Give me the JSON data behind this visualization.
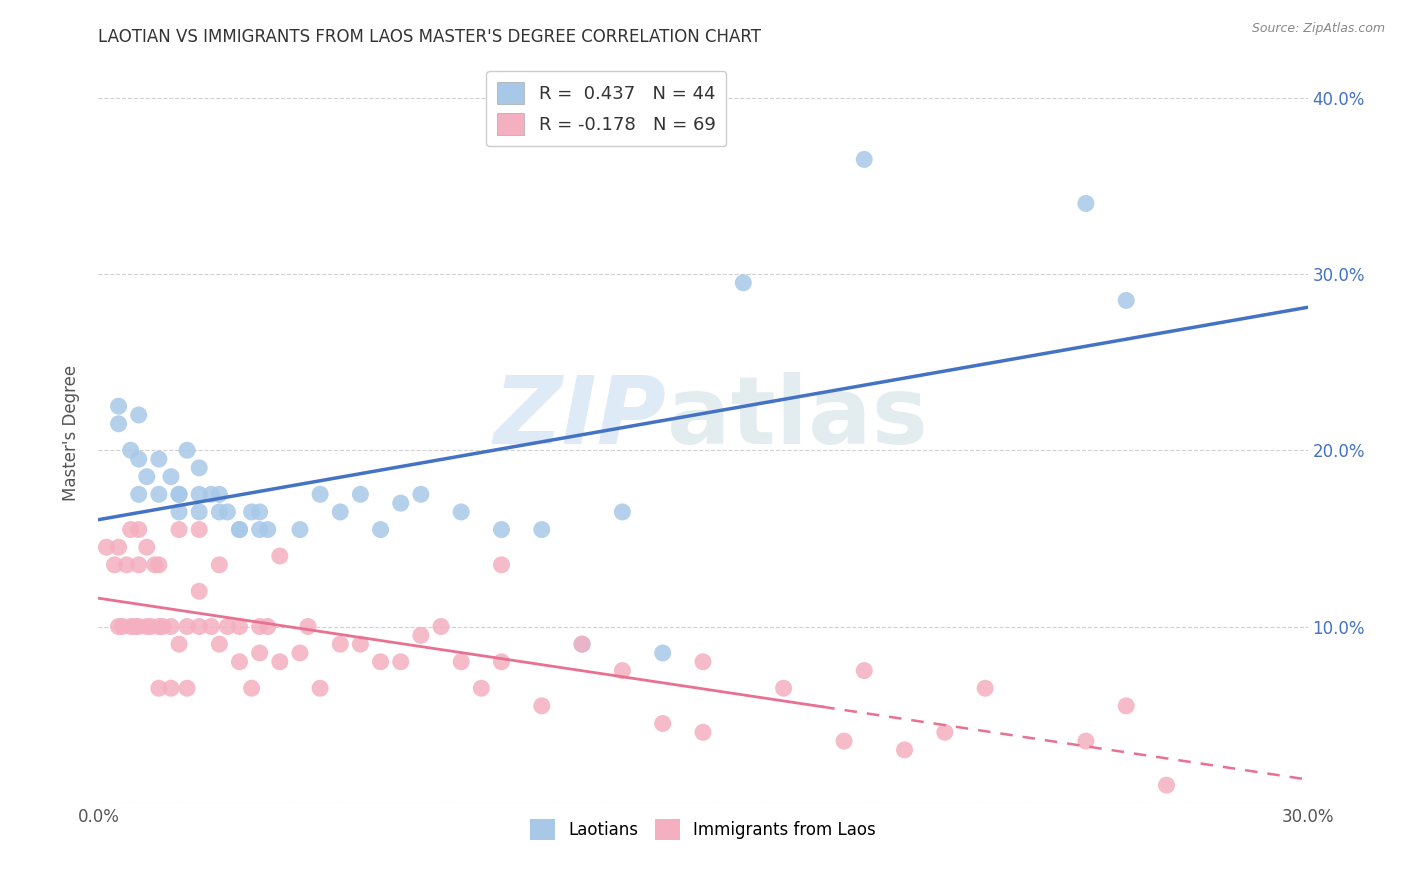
{
  "title": "LAOTIAN VS IMMIGRANTS FROM LAOS MASTER'S DEGREE CORRELATION CHART",
  "source": "Source: ZipAtlas.com",
  "ylabel": "Master's Degree",
  "xlim": [
    0.0,
    0.3
  ],
  "ylim": [
    0.0,
    0.42
  ],
  "x_ticks": [
    0.0,
    0.05,
    0.1,
    0.15,
    0.2,
    0.25,
    0.3
  ],
  "x_tick_labels": [
    "0.0%",
    "",
    "",
    "",
    "",
    "",
    "30.0%"
  ],
  "y_ticks_left": [
    0.0,
    0.1,
    0.2,
    0.3,
    0.4
  ],
  "y_tick_labels_left": [
    "",
    "",
    "",
    "",
    ""
  ],
  "y_ticks_right": [
    0.0,
    0.1,
    0.2,
    0.3,
    0.4
  ],
  "y_tick_labels_right": [
    "",
    "10.0%",
    "20.0%",
    "30.0%",
    "40.0%"
  ],
  "blue_color": "#a8c8e8",
  "pink_color": "#f4afc0",
  "blue_line_color": "#4472c4",
  "pink_line_color": "#e87090",
  "legend_blue_label": "R =  0.437   N = 44",
  "legend_pink_label": "R = -0.178   N = 69",
  "right_axis_color": "#4472c4",
  "blue_scatter_x": [
    0.005,
    0.008,
    0.01,
    0.01,
    0.012,
    0.015,
    0.015,
    0.018,
    0.02,
    0.02,
    0.022,
    0.025,
    0.025,
    0.028,
    0.03,
    0.032,
    0.035,
    0.038,
    0.04,
    0.042,
    0.005,
    0.01,
    0.02,
    0.025,
    0.03,
    0.035,
    0.04,
    0.05,
    0.055,
    0.06,
    0.065,
    0.07,
    0.075,
    0.08,
    0.09,
    0.1,
    0.11,
    0.12,
    0.13,
    0.14,
    0.16,
    0.19,
    0.245,
    0.255
  ],
  "blue_scatter_y": [
    0.215,
    0.2,
    0.195,
    0.175,
    0.185,
    0.195,
    0.175,
    0.185,
    0.175,
    0.165,
    0.2,
    0.175,
    0.165,
    0.175,
    0.175,
    0.165,
    0.155,
    0.165,
    0.165,
    0.155,
    0.225,
    0.22,
    0.175,
    0.19,
    0.165,
    0.155,
    0.155,
    0.155,
    0.175,
    0.165,
    0.175,
    0.155,
    0.17,
    0.175,
    0.165,
    0.155,
    0.155,
    0.09,
    0.165,
    0.085,
    0.295,
    0.365,
    0.34,
    0.285
  ],
  "pink_scatter_x": [
    0.002,
    0.004,
    0.005,
    0.005,
    0.006,
    0.007,
    0.008,
    0.008,
    0.009,
    0.01,
    0.01,
    0.01,
    0.012,
    0.012,
    0.013,
    0.014,
    0.015,
    0.015,
    0.015,
    0.016,
    0.018,
    0.018,
    0.02,
    0.02,
    0.022,
    0.022,
    0.025,
    0.025,
    0.025,
    0.028,
    0.03,
    0.03,
    0.032,
    0.035,
    0.035,
    0.038,
    0.04,
    0.04,
    0.042,
    0.045,
    0.045,
    0.05,
    0.052,
    0.055,
    0.06,
    0.065,
    0.07,
    0.075,
    0.08,
    0.085,
    0.09,
    0.095,
    0.1,
    0.11,
    0.12,
    0.13,
    0.14,
    0.15,
    0.17,
    0.185,
    0.19,
    0.2,
    0.21,
    0.22,
    0.245,
    0.255,
    0.265,
    0.1,
    0.15
  ],
  "pink_scatter_y": [
    0.145,
    0.135,
    0.145,
    0.1,
    0.1,
    0.135,
    0.1,
    0.155,
    0.1,
    0.155,
    0.135,
    0.1,
    0.145,
    0.1,
    0.1,
    0.135,
    0.135,
    0.1,
    0.065,
    0.1,
    0.1,
    0.065,
    0.09,
    0.155,
    0.1,
    0.065,
    0.12,
    0.155,
    0.1,
    0.1,
    0.09,
    0.135,
    0.1,
    0.1,
    0.08,
    0.065,
    0.1,
    0.085,
    0.1,
    0.08,
    0.14,
    0.085,
    0.1,
    0.065,
    0.09,
    0.09,
    0.08,
    0.08,
    0.095,
    0.1,
    0.08,
    0.065,
    0.08,
    0.055,
    0.09,
    0.075,
    0.045,
    0.04,
    0.065,
    0.035,
    0.075,
    0.03,
    0.04,
    0.065,
    0.035,
    0.055,
    0.01,
    0.135,
    0.08
  ],
  "background_color": "#ffffff",
  "grid_color": "#cccccc"
}
